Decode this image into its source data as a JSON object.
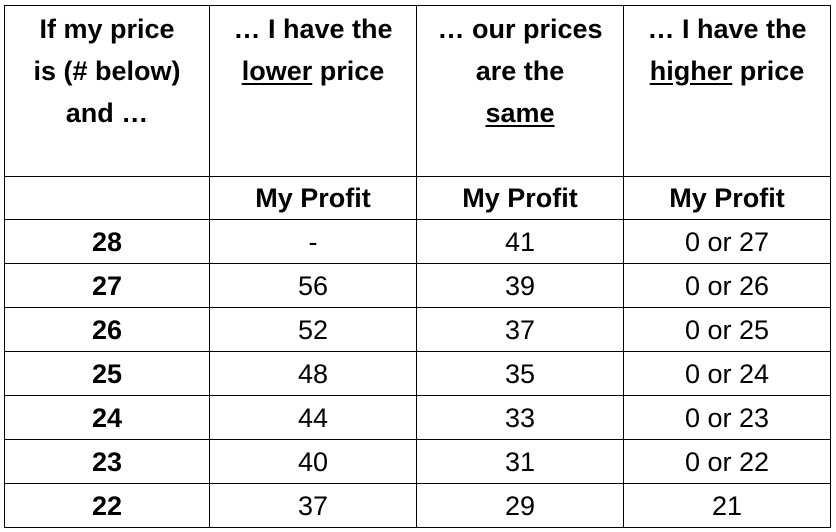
{
  "headers": {
    "col1": {
      "line1": "If my price",
      "line2": "is (# below)",
      "line3": "and …"
    },
    "col2": {
      "line1": "… I have the",
      "line2_underlined": "lower",
      "line2_rest": " price"
    },
    "col3": {
      "line1": "… our prices",
      "line2": "are the",
      "line3_underlined": "same"
    },
    "col4": {
      "line1": "… I have the",
      "line2_underlined": "higher",
      "line2_rest": " price"
    }
  },
  "subheaders": {
    "col1": "",
    "col2": "My Profit",
    "col3": "My Profit",
    "col4": "My Profit"
  },
  "rows": [
    {
      "price": "28",
      "lower": "-",
      "same": "41",
      "higher": "0 or 27"
    },
    {
      "price": "27",
      "lower": "56",
      "same": "39",
      "higher": "0 or 26"
    },
    {
      "price": "26",
      "lower": "52",
      "same": "37",
      "higher": "0 or 25"
    },
    {
      "price": "25",
      "lower": "48",
      "same": "35",
      "higher": "0 or 24"
    },
    {
      "price": "24",
      "lower": "44",
      "same": "33",
      "higher": "0 or 23"
    },
    {
      "price": "23",
      "lower": "40",
      "same": "31",
      "higher": "0 or 22"
    },
    {
      "price": "22",
      "lower": "37",
      "same": "29",
      "higher": "21"
    }
  ]
}
